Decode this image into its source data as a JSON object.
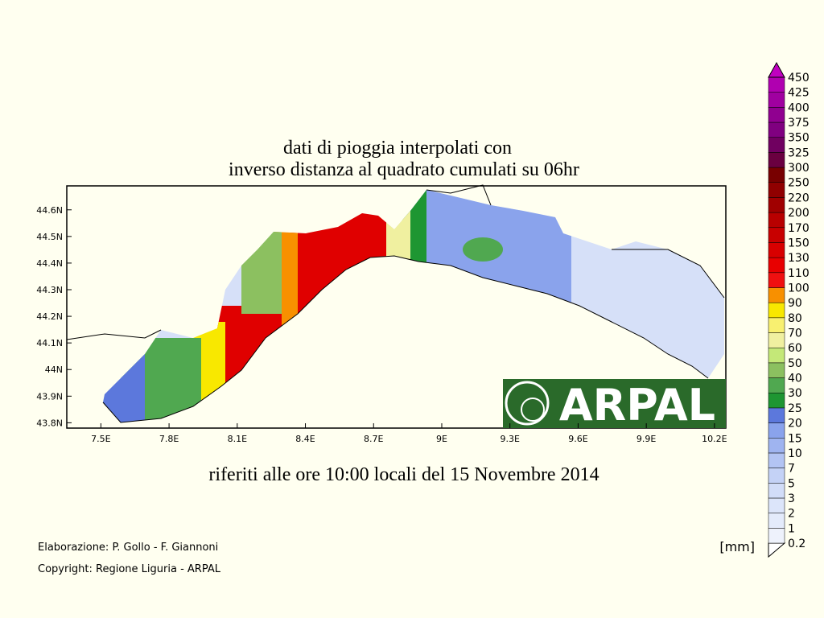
{
  "map": {
    "title": [
      "dati di pioggia interpolati con",
      "inverso distanza al quadrato cumulati su 06hr"
    ],
    "xlim": [
      7.35,
      10.25
    ],
    "ylim": [
      43.78,
      44.69
    ],
    "xticks": [
      {
        "value": 7.5,
        "label": "7.5E"
      },
      {
        "value": 7.8,
        "label": "7.8E"
      },
      {
        "value": 8.1,
        "label": "8.1E"
      },
      {
        "value": 8.4,
        "label": "8.4E"
      },
      {
        "value": 8.7,
        "label": "8.7E"
      },
      {
        "value": 9,
        "label": "9E"
      },
      {
        "value": 9.3,
        "label": "9.3E"
      },
      {
        "value": 9.6,
        "label": "9.6E"
      },
      {
        "value": 9.9,
        "label": "9.9E"
      },
      {
        "value": 10.2,
        "label": "10.2E"
      }
    ],
    "yticks": [
      {
        "value": 43.8,
        "label": "43.8N"
      },
      {
        "value": 43.9,
        "label": "43.9N"
      },
      {
        "value": 44,
        "label": "44N"
      },
      {
        "value": 44.1,
        "label": "44.1N"
      },
      {
        "value": 44.2,
        "label": "44.2N"
      },
      {
        "value": 44.3,
        "label": "44.3N"
      },
      {
        "value": 44.4,
        "label": "44.4N"
      },
      {
        "value": 44.5,
        "label": "44.5N"
      },
      {
        "value": 44.6,
        "label": "44.6N"
      }
    ],
    "subtitle": "riferiti alle ore 10:00 locali del 15 Novembre 2014",
    "credits": [
      "Elaborazione: P. Gollo - F. Giannoni",
      "Copyright: Regione Liguria - ARPAL"
    ],
    "unit": "[mm]",
    "logo": "ARPAL",
    "colorbar": {
      "levels": [
        0.2,
        1,
        2,
        3,
        5,
        7,
        10,
        15,
        20,
        25,
        30,
        40,
        50,
        60,
        70,
        80,
        90,
        100,
        110,
        130,
        150,
        170,
        200,
        220,
        250,
        300,
        325,
        350,
        375,
        400,
        425,
        450
      ],
      "colors": [
        "#eef2fc",
        "#e4ebfb",
        "#dce5fa",
        "#d2ddf8",
        "#c4d2f6",
        "#b3c4f3",
        "#9fb4f0",
        "#8aa3ec",
        "#5c78dc",
        "#1e9632",
        "#50a850",
        "#8cc060",
        "#c4e878",
        "#f0f0a0",
        "#f8f070",
        "#f8e800",
        "#f89000",
        "#f01010",
        "#e80000",
        "#d80000",
        "#c80000",
        "#b80000",
        "#a00000",
        "#900000",
        "#780000",
        "#6a0040",
        "#700060",
        "#800080",
        "#900090",
        "#a000a0",
        "#b000b0",
        "#c000c0"
      ]
    }
  }
}
